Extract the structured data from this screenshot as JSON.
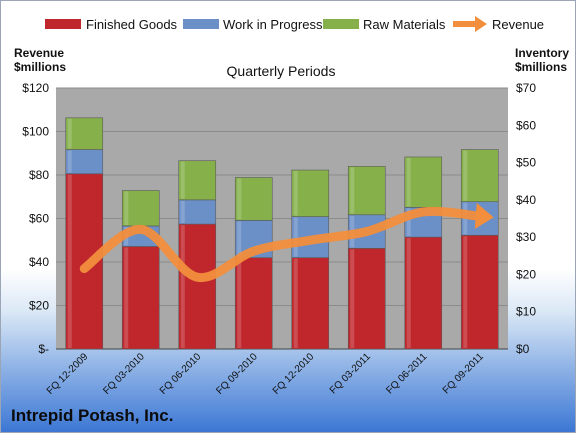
{
  "chart_data": {
    "type": "bar",
    "subtitle": "Quarterly Periods",
    "footer": "Intrepid Potash, Inc.",
    "left_axis": {
      "title_line1": "Revenue",
      "title_line2": "$millions",
      "ylim": [
        0,
        120
      ],
      "ticks": [
        "$-",
        "$20",
        "$40",
        "$60",
        "$80",
        "$100",
        "$120"
      ]
    },
    "right_axis": {
      "title_line1": "Inventory",
      "title_line2": "$millions",
      "ylim": [
        0,
        70
      ],
      "ticks": [
        "$0",
        "$10",
        "$20",
        "$30",
        "$40",
        "$50",
        "$60",
        "$70"
      ]
    },
    "categories": [
      "FQ 12-2009",
      "FQ 03-2010",
      "FQ 06-2010",
      "FQ 09-2010",
      "FQ 12-2010",
      "FQ 03-2011",
      "FQ 06-2011",
      "FQ 09-2011"
    ],
    "stack_series": [
      {
        "name": "Finished Goods",
        "color": "#c0272d",
        "values": [
          47,
          27.5,
          33.5,
          24.5,
          24.5,
          27,
          30,
          30.5
        ]
      },
      {
        "name": "Work in Progress",
        "color": "#6b8fc7",
        "values": [
          6.5,
          5.5,
          6.5,
          10,
          11,
          9,
          8,
          9
        ]
      },
      {
        "name": "Raw Materials",
        "color": "#86b04a",
        "values": [
          8.5,
          9.5,
          10.5,
          11.5,
          12.5,
          13,
          13.5,
          14
        ]
      }
    ],
    "line_series": {
      "name": "Revenue",
      "color": "#f28e3c",
      "values": [
        37,
        55,
        33,
        45,
        50,
        54,
        63,
        61
      ]
    },
    "legend_position": "top",
    "grid": true
  }
}
